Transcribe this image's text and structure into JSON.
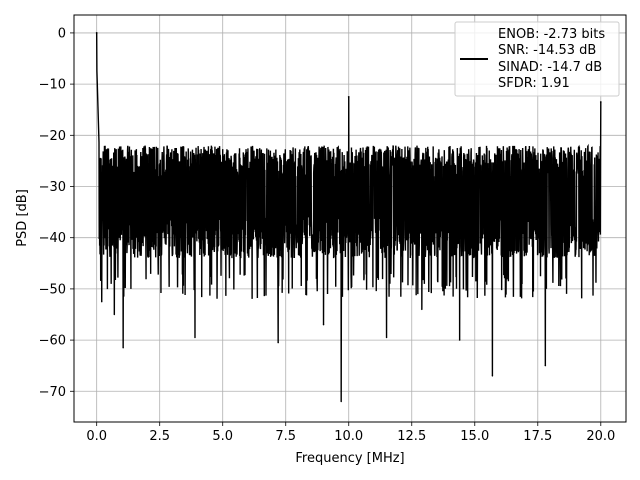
{
  "chart_data": {
    "type": "line",
    "title": "",
    "xlabel": "Frequency [MHz]",
    "ylabel": "PSD [dB]",
    "xlim": [
      -0.9,
      21.0
    ],
    "ylim": [
      -76,
      3.5
    ],
    "xticks": [
      0.0,
      2.5,
      5.0,
      7.5,
      10.0,
      12.5,
      15.0,
      17.5,
      20.0
    ],
    "xtick_labels": [
      "0.0",
      "2.5",
      "5.0",
      "7.5",
      "10.0",
      "12.5",
      "15.0",
      "17.5",
      "20.0"
    ],
    "yticks": [
      0,
      -10,
      -20,
      -30,
      -40,
      -50,
      -60,
      -70
    ],
    "ytick_labels": [
      "0",
      "−10",
      "−20",
      "−30",
      "−40",
      "−50",
      "−60",
      "−70"
    ],
    "grid": true,
    "legend_position": "top-right",
    "legend_entries": [
      "ENOB: -2.73 bits",
      "SNR: -14.53 dB",
      "SINAD: -14.7 dB",
      "SFDR: 1.91"
    ],
    "series": [
      {
        "color": "#000000",
        "x_range": [
          0.0,
          20.0
        ],
        "noise_floor_top": -22,
        "noise_floor_bottom": -44,
        "peaks": [
          {
            "x": 0.0,
            "y": 0.0
          },
          {
            "x": 10.0,
            "y": -12.5
          },
          {
            "x": 20.0,
            "y": -13.5
          }
        ],
        "dips": [
          {
            "x": 0.2,
            "y": -52.5
          },
          {
            "x": 0.7,
            "y": -55
          },
          {
            "x": 1.05,
            "y": -61.5
          },
          {
            "x": 3.9,
            "y": -59.5
          },
          {
            "x": 7.2,
            "y": -60.5
          },
          {
            "x": 9.0,
            "y": -57
          },
          {
            "x": 9.7,
            "y": -72
          },
          {
            "x": 11.5,
            "y": -59.5
          },
          {
            "x": 12.9,
            "y": -54
          },
          {
            "x": 14.4,
            "y": -60
          },
          {
            "x": 15.7,
            "y": -67
          },
          {
            "x": 17.8,
            "y": -65
          }
        ]
      }
    ]
  }
}
